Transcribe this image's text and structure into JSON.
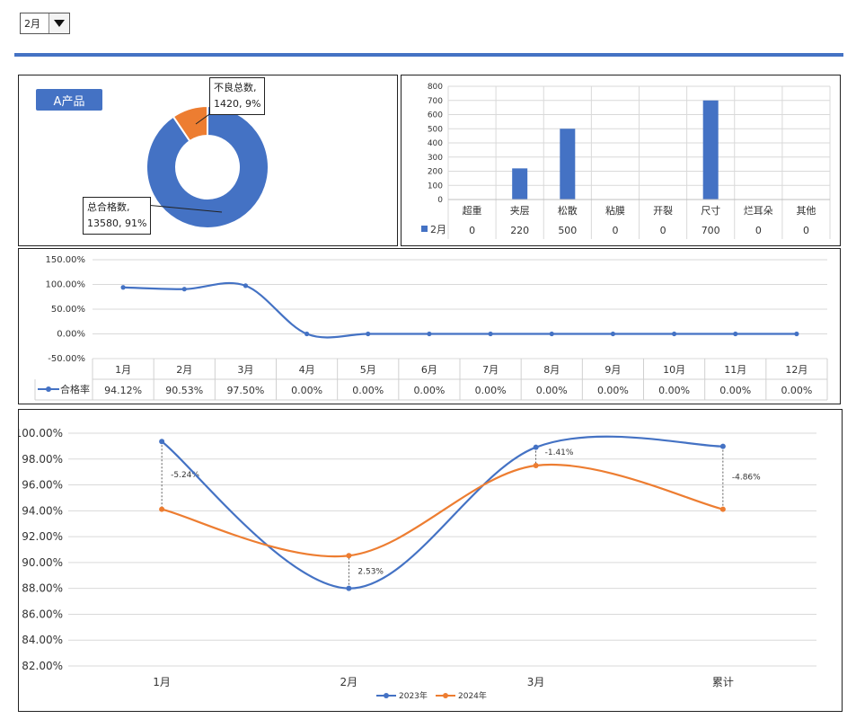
{
  "selector": {
    "value": "2月"
  },
  "product_badge": "A产品",
  "donut": {
    "slices": [
      {
        "label": "总合格数",
        "value": 13580,
        "pct": 91,
        "color": "#4472c4",
        "callout_1": "总合格数,",
        "callout_2": "13580, 91%"
      },
      {
        "label": "不良总数",
        "value": 1420,
        "pct": 9,
        "color": "#ed7d31",
        "callout_1": "不良总数,",
        "callout_2": "1420, 9%"
      }
    ]
  },
  "defect_chart": {
    "type": "bar",
    "categories": [
      "超重",
      "夹层",
      "松散",
      "粘膜",
      "开裂",
      "尺寸",
      "烂耳朵",
      "其他"
    ],
    "series": [
      {
        "name": "2月",
        "values": [
          0,
          220,
          500,
          0,
          0,
          700,
          0,
          0
        ]
      }
    ],
    "yticks": [
      "800",
      "700",
      "600",
      "500",
      "400",
      "300",
      "200",
      "100",
      "0"
    ],
    "ylim": [
      0,
      800
    ],
    "color": "#4472c4",
    "table_values": [
      "0",
      "220",
      "500",
      "0",
      "0",
      "700",
      "0",
      "0"
    ]
  },
  "rate_chart": {
    "type": "line",
    "categories": [
      "1月",
      "2月",
      "3月",
      "4月",
      "5月",
      "6月",
      "7月",
      "8月",
      "9月",
      "10月",
      "11月",
      "12月"
    ],
    "series": [
      {
        "name": "合格率",
        "values": [
          94.12,
          90.53,
          97.5,
          0,
          0,
          0,
          0,
          0,
          0,
          0,
          0,
          0
        ]
      }
    ],
    "table_values": [
      "94.12%",
      "90.53%",
      "97.50%",
      "0.00%",
      "0.00%",
      "0.00%",
      "0.00%",
      "0.00%",
      "0.00%",
      "0.00%",
      "0.00%",
      "0.00%"
    ],
    "yticks": [
      "150.00%",
      "100.00%",
      "50.00%",
      "0.00%",
      "-50.00%"
    ],
    "ylim": [
      -50,
      150
    ],
    "color": "#4472c4"
  },
  "compare_chart": {
    "type": "line",
    "categories": [
      "1月",
      "2月",
      "3月",
      "累计"
    ],
    "series": [
      {
        "name": "2023年",
        "values": [
          99.36,
          88.0,
          98.91,
          98.98
        ],
        "color": "#4472c4"
      },
      {
        "name": "2024年",
        "values": [
          94.12,
          90.53,
          97.5,
          94.12
        ],
        "color": "#ed7d31"
      }
    ],
    "diff_labels": [
      "-5.24%",
      "2.53%",
      "-1.41%",
      "-4.86%"
    ],
    "yticks": [
      "100.00%",
      "98.00%",
      "96.00%",
      "94.00%",
      "92.00%",
      "90.00%",
      "88.00%",
      "86.00%",
      "84.00%",
      "82.00%"
    ],
    "ylim": [
      82,
      100
    ]
  }
}
